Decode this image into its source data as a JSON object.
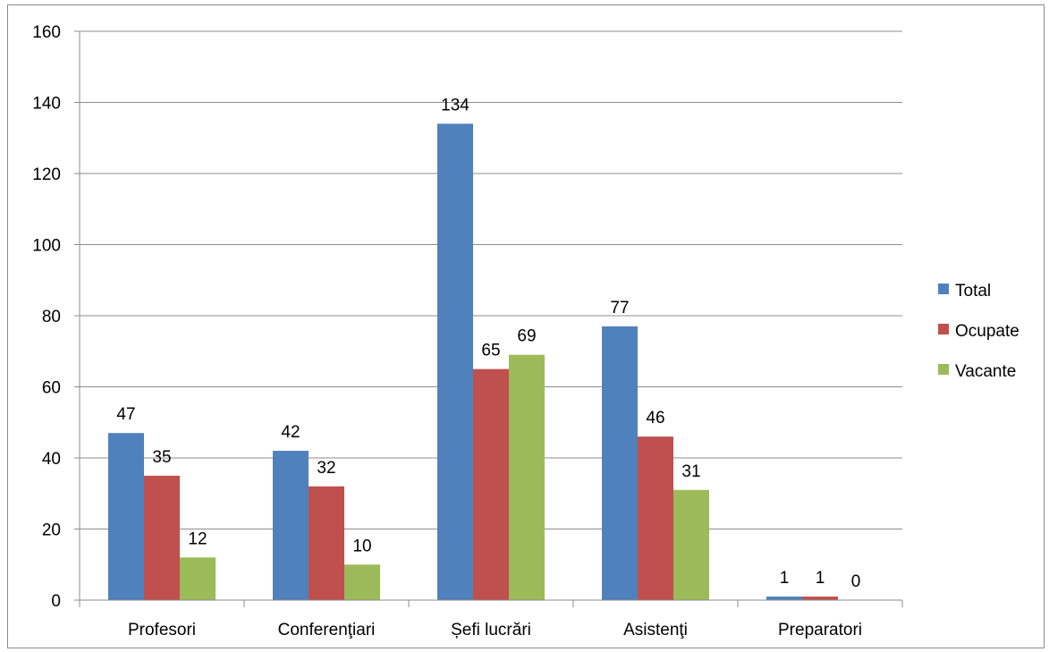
{
  "chart_data": {
    "type": "bar",
    "categories": [
      "Profesori",
      "Conferenţiari",
      "Șefi lucrări",
      "Asistenţi",
      "Preparatori"
    ],
    "series": [
      {
        "name": "Total",
        "values": [
          47,
          42,
          134,
          77,
          1
        ],
        "color": "#4f81bd"
      },
      {
        "name": "Ocupate",
        "values": [
          35,
          32,
          65,
          46,
          1
        ],
        "color": "#c0504d"
      },
      {
        "name": "Vacante",
        "values": [
          12,
          10,
          69,
          31,
          0
        ],
        "color": "#9bbb59"
      }
    ],
    "ylim": [
      0,
      160
    ],
    "yticks": [
      0,
      20,
      40,
      60,
      80,
      100,
      120,
      140,
      160
    ],
    "grid": true,
    "legend": "right",
    "data_labels": true
  }
}
